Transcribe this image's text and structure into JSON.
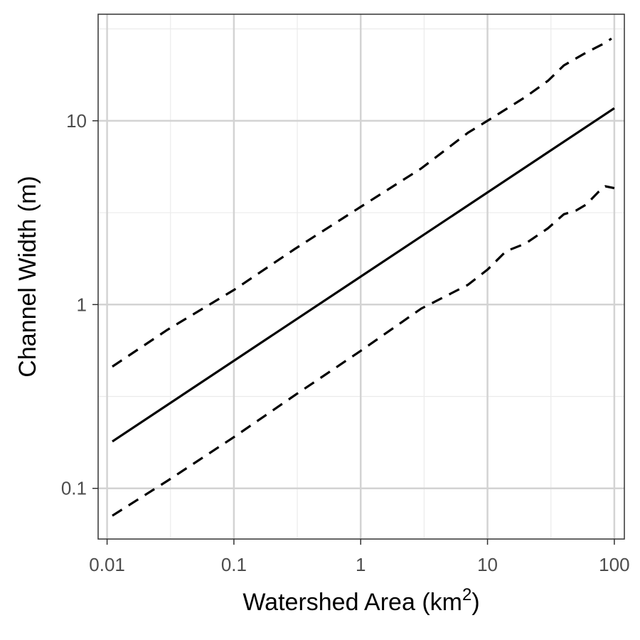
{
  "chart_data": {
    "type": "line",
    "xlabel": "Watershed Area (km",
    "xlabel_superscript": "2",
    "xlabel_suffix": ")",
    "ylabel": "Channel Width (m)",
    "x_scale": "log",
    "y_scale": "log",
    "xlim": [
      0.0085,
      120
    ],
    "ylim": [
      0.053,
      38
    ],
    "x_ticks": [
      0.01,
      0.1,
      1,
      10,
      100
    ],
    "x_tick_labels": [
      "0.01",
      "0.1",
      "1",
      "10",
      "100"
    ],
    "y_ticks": [
      0.1,
      1,
      10
    ],
    "y_tick_labels": [
      "0.1",
      "1",
      "10"
    ],
    "grid": true,
    "legend": "none",
    "series": [
      {
        "style": "solid",
        "color": "#000000",
        "points": [
          [
            0.011,
            0.18
          ],
          [
            100,
            11.7
          ]
        ]
      },
      {
        "style": "dashed",
        "color": "#000000",
        "points": [
          [
            0.011,
            0.46
          ],
          [
            0.03,
            0.73
          ],
          [
            0.1,
            1.2
          ],
          [
            0.3,
            2.0
          ],
          [
            1,
            3.4
          ],
          [
            3,
            5.5
          ],
          [
            7,
            8.6
          ],
          [
            10,
            10.0
          ],
          [
            20,
            13.5
          ],
          [
            30,
            16.5
          ],
          [
            40,
            20.0
          ],
          [
            60,
            23.5
          ],
          [
            80,
            26.0
          ],
          [
            95,
            28.0
          ]
        ]
      },
      {
        "style": "dashed",
        "color": "#000000",
        "points": [
          [
            0.011,
            0.071
          ],
          [
            0.03,
            0.11
          ],
          [
            0.1,
            0.19
          ],
          [
            0.3,
            0.32
          ],
          [
            1,
            0.56
          ],
          [
            3,
            0.95
          ],
          [
            7,
            1.28
          ],
          [
            10,
            1.55
          ],
          [
            14,
            1.95
          ],
          [
            20,
            2.15
          ],
          [
            30,
            2.6
          ],
          [
            40,
            3.1
          ],
          [
            50,
            3.25
          ],
          [
            60,
            3.5
          ],
          [
            75,
            4.1
          ],
          [
            85,
            4.4
          ],
          [
            100,
            4.3
          ]
        ]
      }
    ]
  }
}
